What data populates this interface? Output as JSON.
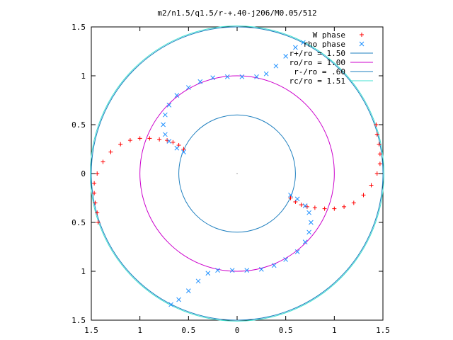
{
  "chart_data": {
    "type": "scatter",
    "title": "m2/n1.5/q1.5/r-+.40-j206/M0.05/512",
    "xlim": [
      -1.5,
      1.5
    ],
    "ylim": [
      -1.5,
      1.5
    ],
    "x_ticks": [
      -1.5,
      -1,
      -0.5,
      0,
      0.5,
      1,
      1.5
    ],
    "y_ticks": [
      -1.5,
      -1,
      -0.5,
      0,
      0.5,
      1,
      1.5
    ],
    "x_tick_labels": [
      "1.5",
      "1",
      "0.5",
      "0",
      "0.5",
      "1",
      "1.5"
    ],
    "y_tick_labels": [
      "1.5",
      "1",
      "0.5",
      "0",
      "0.5",
      "1",
      "1.5"
    ],
    "grid": false,
    "legend_position": "top-right",
    "legend": [
      {
        "label": "W phase",
        "color": "#ff0000",
        "kind": "plus"
      },
      {
        "label": "rho phase",
        "color": "#1e90ff",
        "kind": "cross"
      },
      {
        "label": "r+/ro = 1.50",
        "color": "#1e7fbf",
        "kind": "line"
      },
      {
        "label": "ro/ro = 1.00",
        "color": "#cc00cc",
        "kind": "line"
      },
      {
        "label": "r-/ro = .60",
        "color": "#1e7fbf",
        "kind": "line"
      },
      {
        "label": "rc/ro = 1.51",
        "color": "#40e0d0",
        "kind": "line"
      }
    ],
    "circles": [
      {
        "name": "r+/ro",
        "r": 1.5,
        "color": "#1e7fbf"
      },
      {
        "name": "ro/ro",
        "r": 1.0,
        "color": "#cc00cc"
      },
      {
        "name": "r-/ro",
        "r": 0.6,
        "color": "#1e7fbf"
      },
      {
        "name": "rc/ro",
        "r": 1.51,
        "color": "#40e0d0"
      }
    ],
    "series": [
      {
        "name": "W phase",
        "color": "#ff0000",
        "marker": "plus",
        "points": [
          [
            -0.55,
            0.25
          ],
          [
            -0.6,
            0.29
          ],
          [
            -0.66,
            0.32
          ],
          [
            -0.72,
            0.34
          ],
          [
            -0.8,
            0.35
          ],
          [
            -0.9,
            0.36
          ],
          [
            -1.0,
            0.36
          ],
          [
            -1.1,
            0.34
          ],
          [
            -1.2,
            0.3
          ],
          [
            -1.3,
            0.22
          ],
          [
            -1.38,
            0.12
          ],
          [
            -1.44,
            0.0
          ],
          [
            -1.47,
            -0.1
          ],
          [
            -1.47,
            -0.2
          ],
          [
            -1.46,
            -0.3
          ],
          [
            -1.44,
            -0.4
          ],
          [
            -1.43,
            -0.5
          ],
          [
            0.55,
            -0.25
          ],
          [
            0.6,
            -0.29
          ],
          [
            0.66,
            -0.32
          ],
          [
            0.72,
            -0.34
          ],
          [
            0.8,
            -0.35
          ],
          [
            0.9,
            -0.36
          ],
          [
            1.0,
            -0.36
          ],
          [
            1.1,
            -0.34
          ],
          [
            1.2,
            -0.3
          ],
          [
            1.3,
            -0.22
          ],
          [
            1.38,
            -0.12
          ],
          [
            1.44,
            0.0
          ],
          [
            1.47,
            0.1
          ],
          [
            1.47,
            0.2
          ],
          [
            1.46,
            0.3
          ],
          [
            1.44,
            0.4
          ],
          [
            1.43,
            0.5
          ]
        ]
      },
      {
        "name": "rho phase",
        "color": "#1e90ff",
        "marker": "cross",
        "points": [
          [
            -0.55,
            0.22
          ],
          [
            -0.62,
            0.26
          ],
          [
            -0.7,
            0.33
          ],
          [
            -0.74,
            0.4
          ],
          [
            -0.76,
            0.5
          ],
          [
            -0.74,
            0.6
          ],
          [
            -0.7,
            0.7
          ],
          [
            -0.62,
            0.8
          ],
          [
            -0.5,
            0.88
          ],
          [
            -0.38,
            0.94
          ],
          [
            -0.25,
            0.98
          ],
          [
            -0.1,
            0.99
          ],
          [
            0.05,
            0.99
          ],
          [
            0.2,
            0.99
          ],
          [
            0.3,
            1.02
          ],
          [
            0.4,
            1.1
          ],
          [
            0.5,
            1.2
          ],
          [
            0.6,
            1.29
          ],
          [
            0.68,
            1.34
          ],
          [
            0.55,
            -0.22
          ],
          [
            0.62,
            -0.26
          ],
          [
            0.7,
            -0.33
          ],
          [
            0.74,
            -0.4
          ],
          [
            0.76,
            -0.5
          ],
          [
            0.74,
            -0.6
          ],
          [
            0.7,
            -0.7
          ],
          [
            0.62,
            -0.8
          ],
          [
            0.5,
            -0.88
          ],
          [
            0.38,
            -0.94
          ],
          [
            0.25,
            -0.98
          ],
          [
            0.1,
            -0.99
          ],
          [
            -0.05,
            -0.99
          ],
          [
            -0.2,
            -0.99
          ],
          [
            -0.3,
            -1.02
          ],
          [
            -0.4,
            -1.1
          ],
          [
            -0.5,
            -1.2
          ],
          [
            -0.6,
            -1.29
          ],
          [
            -0.68,
            -1.34
          ]
        ]
      }
    ]
  }
}
